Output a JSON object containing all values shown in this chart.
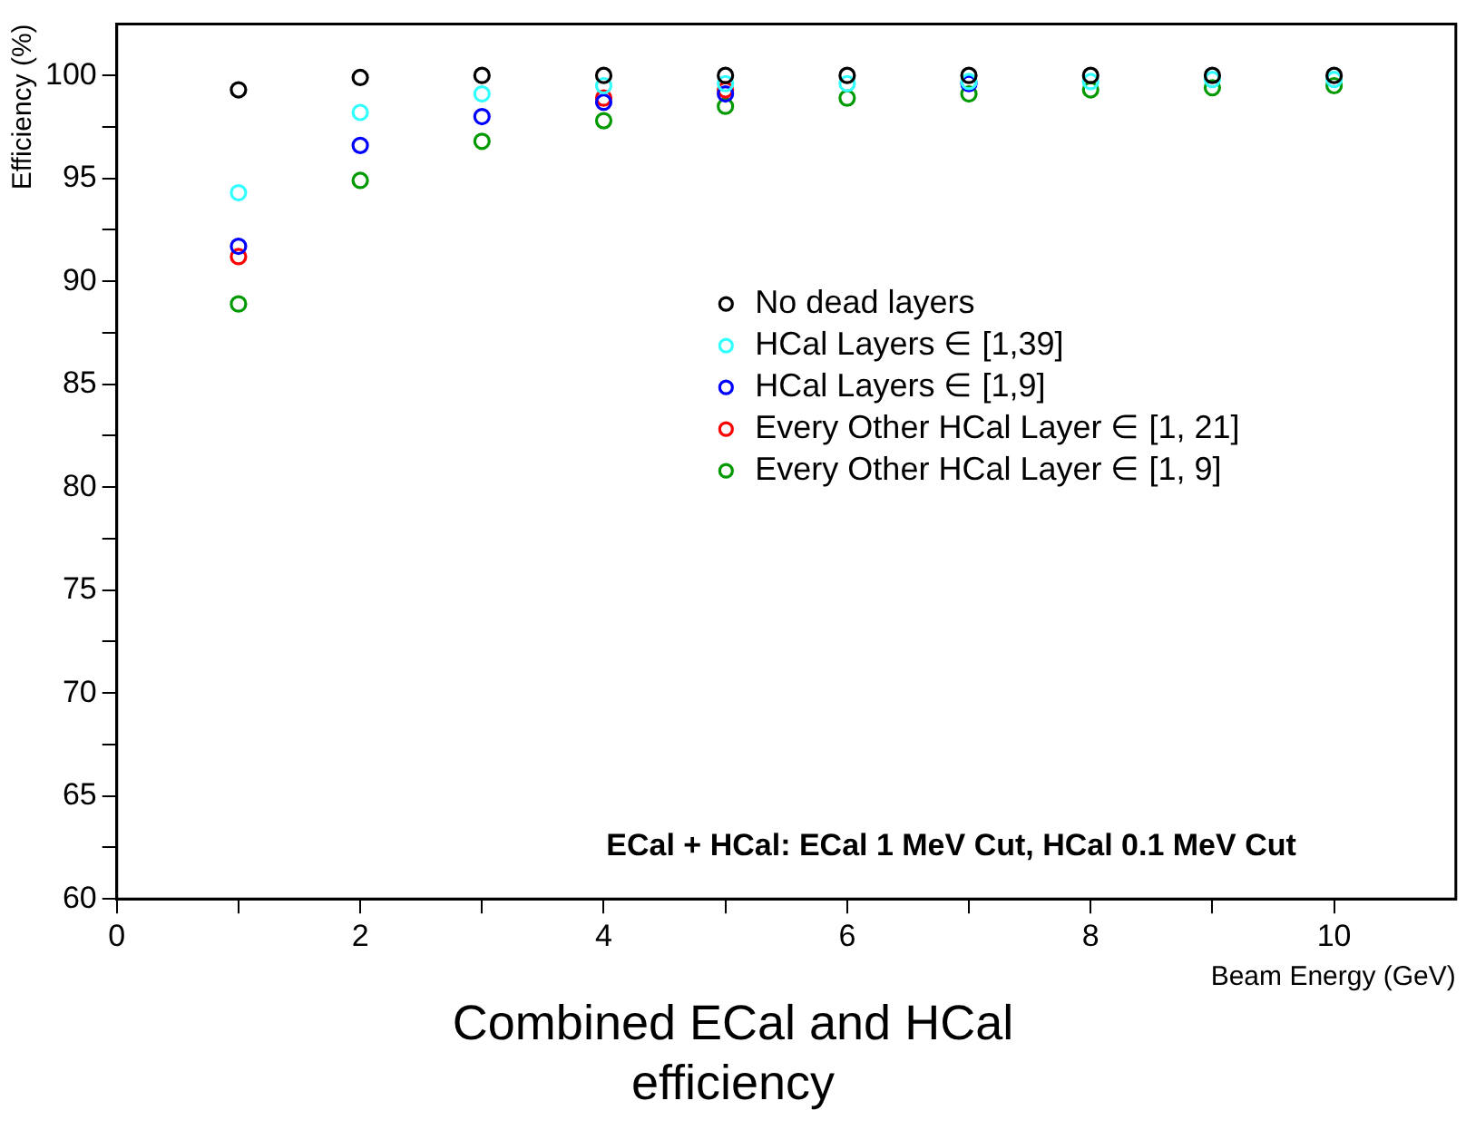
{
  "chart_data": {
    "type": "scatter",
    "title": "Combined ECal and HCal efficiency",
    "xlabel": "Beam Energy (GeV)",
    "ylabel": "Efficiency (%)",
    "annotations": [
      "ECal + HCal: ECal 1 MeV Cut, HCal 0.1 MeV Cut"
    ],
    "x": [
      1,
      2,
      3,
      4,
      5,
      6,
      7,
      8,
      9,
      10
    ],
    "series": [
      {
        "name": "No dead layers",
        "color": "#000000",
        "values": [
          99.3,
          99.9,
          100,
          100,
          100,
          100,
          100,
          100,
          100,
          100
        ]
      },
      {
        "name": "HCal Layers ∈ [1,39]",
        "color": "#33ffff",
        "values": [
          94.3,
          98.2,
          99.1,
          99.5,
          99.6,
          99.6,
          99.7,
          99.7,
          99.8,
          99.8
        ]
      },
      {
        "name": "HCal Layers ∈ [1,9]",
        "color": "#0000ff",
        "values": [
          91.7,
          96.6,
          98.0,
          98.7,
          99.1,
          null,
          99.6,
          null,
          null,
          null
        ]
      },
      {
        "name": "Every Other HCal Layer ∈ [1, 21]",
        "color": "#ff0000",
        "values": [
          91.2,
          null,
          null,
          98.9,
          99.3,
          null,
          null,
          null,
          null,
          null
        ]
      },
      {
        "name": "Every Other HCal Layer ∈ [1, 9]",
        "color": "#009900",
        "values": [
          88.9,
          94.9,
          96.8,
          97.8,
          98.5,
          98.9,
          99.1,
          99.3,
          99.4,
          99.5
        ]
      }
    ],
    "xlim": [
      0,
      11
    ],
    "xticks": [
      0,
      {
        "value": 1,
        "label": null
      },
      2,
      {
        "value": 3,
        "label": null
      },
      4,
      {
        "value": 5,
        "label": null
      },
      6,
      {
        "value": 7,
        "label": null
      },
      8,
      {
        "value": 9,
        "label": null
      },
      10
    ],
    "ylim": [
      60,
      102.5
    ],
    "yticks": [
      60,
      {
        "value": 62.5,
        "label": null
      },
      65,
      {
        "value": 67.5,
        "label": null
      },
      70,
      {
        "value": 72.5,
        "label": null
      },
      75,
      {
        "value": 77.5,
        "label": null
      },
      80,
      {
        "value": 82.5,
        "label": null
      },
      85,
      {
        "value": 87.5,
        "label": null
      },
      90,
      {
        "value": 92.5,
        "label": null
      },
      95,
      {
        "value": 97.5,
        "label": null
      },
      100
    ],
    "grid": false,
    "legend": "right",
    "marker": "circle"
  }
}
